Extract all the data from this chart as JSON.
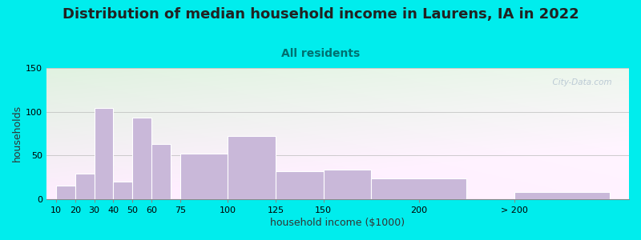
{
  "title": "Distribution of median household income in Laurens, IA in 2022",
  "subtitle": "All residents",
  "xlabel": "household income ($1000)",
  "ylabel": "households",
  "bar_color": "#c9b8d9",
  "background_outer": "#00eded",
  "title_color": "#222222",
  "subtitle_color": "#007070",
  "watermark": "  City-Data.com",
  "bar_data": [
    [
      10,
      10,
      15
    ],
    [
      20,
      10,
      29
    ],
    [
      30,
      10,
      104
    ],
    [
      40,
      10,
      20
    ],
    [
      50,
      10,
      93
    ],
    [
      60,
      10,
      63
    ],
    [
      75,
      25,
      52
    ],
    [
      100,
      25,
      72
    ],
    [
      125,
      25,
      32
    ],
    [
      150,
      25,
      34
    ],
    [
      175,
      50,
      24
    ],
    [
      250,
      50,
      8
    ]
  ],
  "xtick_positions": [
    10,
    20,
    30,
    40,
    50,
    60,
    75,
    100,
    125,
    150,
    200,
    250
  ],
  "xtick_labels": [
    "10",
    "20",
    "30",
    "40",
    "50",
    "60",
    "75",
    "100",
    "125",
    "150",
    "200",
    "> 200"
  ],
  "yticks": [
    0,
    50,
    100,
    150
  ],
  "ylim": [
    0,
    150
  ],
  "xlim": [
    5,
    310
  ],
  "title_fontsize": 13,
  "subtitle_fontsize": 10,
  "axis_label_fontsize": 9,
  "tick_fontsize": 8
}
